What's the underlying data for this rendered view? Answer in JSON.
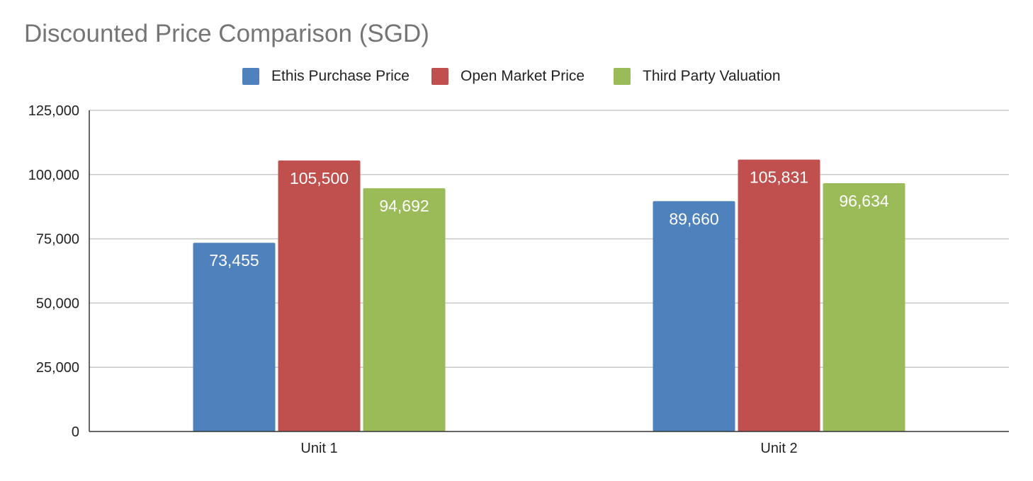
{
  "chart_data": {
    "type": "bar",
    "title": "Discounted Price Comparison (SGD)",
    "xlabel": "",
    "ylabel": "",
    "categories": [
      "Unit 1",
      "Unit 2"
    ],
    "series": [
      {
        "name": "Ethis Purchase Price",
        "color": "#4f81bd",
        "values": [
          73455,
          89660
        ],
        "labels": [
          "73,455",
          "89,660"
        ]
      },
      {
        "name": "Open Market Price",
        "color": "#c0504d",
        "values": [
          105500,
          105831
        ],
        "labels": [
          "105,500",
          "105,831"
        ]
      },
      {
        "name": "Third Party Valuation",
        "color": "#9bbb59",
        "values": [
          94692,
          96634
        ],
        "labels": [
          "94,692",
          "96,634"
        ]
      }
    ],
    "ylim": [
      0,
      125000
    ],
    "yticks": [
      0,
      25000,
      50000,
      75000,
      100000,
      125000
    ],
    "ytick_labels": [
      "0",
      "25,000",
      "50,000",
      "75,000",
      "100,000",
      "125,000"
    ],
    "grid": true,
    "legend_position": "top-center"
  }
}
